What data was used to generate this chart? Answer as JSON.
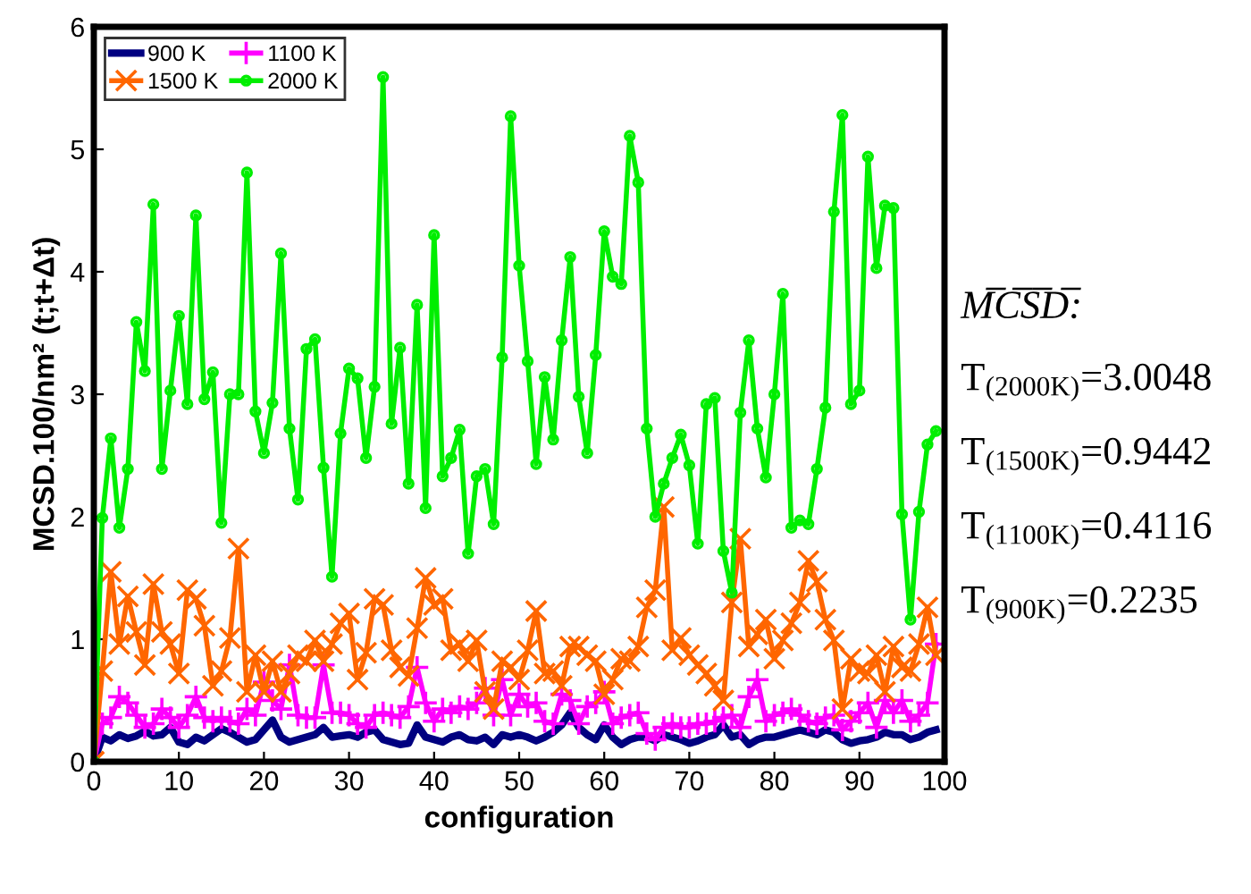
{
  "chart_data": {
    "type": "line",
    "xlabel": "configuration",
    "ylabel": "MCSD.100/nm² (t;t+Δt)",
    "x": [
      0,
      1,
      2,
      3,
      4,
      5,
      6,
      7,
      8,
      9,
      10,
      11,
      12,
      13,
      14,
      15,
      16,
      17,
      18,
      19,
      20,
      21,
      22,
      23,
      24,
      25,
      26,
      27,
      28,
      29,
      30,
      31,
      32,
      33,
      34,
      35,
      36,
      37,
      38,
      39,
      40,
      41,
      42,
      43,
      44,
      45,
      46,
      47,
      48,
      49,
      50,
      51,
      52,
      53,
      54,
      55,
      56,
      57,
      58,
      59,
      60,
      61,
      62,
      63,
      64,
      65,
      66,
      67,
      68,
      69,
      70,
      71,
      72,
      73,
      74,
      75,
      76,
      77,
      78,
      79,
      80,
      81,
      82,
      83,
      84,
      85,
      86,
      87,
      88,
      89,
      90,
      91,
      92,
      93,
      94,
      95,
      96,
      97,
      98,
      99
    ],
    "series": [
      {
        "name": "900 K",
        "color": "#000080",
        "marker": "none",
        "values": [
          0,
          0.2,
          0.17,
          0.22,
          0.19,
          0.21,
          0.25,
          0.21,
          0.22,
          0.28,
          0.16,
          0.14,
          0.2,
          0.17,
          0.22,
          0.27,
          0.24,
          0.2,
          0.16,
          0.18,
          0.26,
          0.34,
          0.2,
          0.16,
          0.18,
          0.2,
          0.22,
          0.28,
          0.2,
          0.21,
          0.22,
          0.2,
          0.24,
          0.26,
          0.18,
          0.16,
          0.14,
          0.15,
          0.3,
          0.2,
          0.18,
          0.16,
          0.2,
          0.22,
          0.18,
          0.17,
          0.2,
          0.14,
          0.22,
          0.2,
          0.22,
          0.2,
          0.17,
          0.2,
          0.24,
          0.3,
          0.4,
          0.28,
          0.22,
          0.18,
          0.3,
          0.2,
          0.14,
          0.18,
          0.2,
          0.2,
          0.17,
          0.22,
          0.2,
          0.18,
          0.15,
          0.17,
          0.2,
          0.22,
          0.3,
          0.2,
          0.22,
          0.14,
          0.18,
          0.2,
          0.2,
          0.22,
          0.24,
          0.26,
          0.24,
          0.22,
          0.26,
          0.24,
          0.18,
          0.15,
          0.17,
          0.18,
          0.2,
          0.24,
          0.22,
          0.22,
          0.18,
          0.2,
          0.24,
          0.26
        ]
      },
      {
        "name": "1100 K",
        "color": "#ff00ff",
        "marker": "cross",
        "values": [
          0,
          0.31,
          0.36,
          0.53,
          0.48,
          0.38,
          0.28,
          0.31,
          0.43,
          0.36,
          0.28,
          0.38,
          0.53,
          0.36,
          0.33,
          0.36,
          0.33,
          0.31,
          0.43,
          0.38,
          0.65,
          0.5,
          0.43,
          0.79,
          0.38,
          0.36,
          0.36,
          0.79,
          0.4,
          0.4,
          0.38,
          0.31,
          0.28,
          0.38,
          0.4,
          0.38,
          0.36,
          0.45,
          0.77,
          0.48,
          0.33,
          0.43,
          0.4,
          0.45,
          0.43,
          0.48,
          0.6,
          0.38,
          0.67,
          0.38,
          0.55,
          0.45,
          0.48,
          0.33,
          0.31,
          0.55,
          0.5,
          0.31,
          0.45,
          0.48,
          0.57,
          0.31,
          0.36,
          0.38,
          0.4,
          0.23,
          0.18,
          0.28,
          0.31,
          0.28,
          0.28,
          0.31,
          0.31,
          0.33,
          0.36,
          0.38,
          0.28,
          0.53,
          0.67,
          0.33,
          0.38,
          0.4,
          0.43,
          0.38,
          0.33,
          0.31,
          0.36,
          0.38,
          0.26,
          0.33,
          0.4,
          0.48,
          0.28,
          0.5,
          0.4,
          0.5,
          0.33,
          0.38,
          0.48,
          0.96
        ]
      },
      {
        "name": "1500 K",
        "color": "#ff6600",
        "marker": "x",
        "values": [
          0,
          0.74,
          1.55,
          0.96,
          1.35,
          1.06,
          0.79,
          1.45,
          1.06,
          0.96,
          0.72,
          1.4,
          1.33,
          1.11,
          0.62,
          0.74,
          1.01,
          1.74,
          0.57,
          0.87,
          0.57,
          0.82,
          0.57,
          0.72,
          0.87,
          0.82,
          0.99,
          0.82,
          0.96,
          1.13,
          1.21,
          0.67,
          0.89,
          1.33,
          1.28,
          0.91,
          0.77,
          0.7,
          1.09,
          1.5,
          1.28,
          1.33,
          0.91,
          0.96,
          0.82,
          0.99,
          0.57,
          0.43,
          0.82,
          0.77,
          0.67,
          0.91,
          1.23,
          0.72,
          0.74,
          0.62,
          0.94,
          0.94,
          0.87,
          0.82,
          0.55,
          0.67,
          0.84,
          0.82,
          0.94,
          1.26,
          1.4,
          2.08,
          0.91,
          1.01,
          0.87,
          0.79,
          0.72,
          0.62,
          0.5,
          1.3,
          1.82,
          0.94,
          1.04,
          1.16,
          0.84,
          0.99,
          1.13,
          1.3,
          1.64,
          1.47,
          1.16,
          0.99,
          0.43,
          0.84,
          0.74,
          0.72,
          0.87,
          0.57,
          0.94,
          0.77,
          0.74,
          0.96,
          1.26,
          0.87
        ]
      },
      {
        "name": "2000 K",
        "color": "#00ee00",
        "marker": "circle",
        "values": [
          0,
          1.99,
          2.64,
          1.91,
          2.39,
          3.59,
          3.19,
          4.55,
          2.39,
          3.03,
          3.64,
          2.92,
          4.46,
          2.96,
          3.18,
          1.95,
          3.0,
          3.0,
          4.81,
          2.86,
          2.52,
          2.93,
          4.15,
          2.72,
          2.14,
          3.37,
          3.45,
          2.4,
          1.51,
          2.68,
          3.21,
          3.13,
          2.48,
          3.06,
          5.59,
          2.76,
          3.38,
          2.27,
          3.73,
          2.07,
          4.3,
          2.33,
          2.48,
          2.71,
          1.7,
          2.33,
          2.39,
          1.94,
          3.3,
          5.27,
          4.05,
          3.27,
          2.43,
          3.14,
          2.63,
          3.44,
          4.12,
          2.98,
          2.52,
          3.32,
          4.33,
          3.96,
          3.9,
          5.11,
          4.73,
          2.72,
          2.0,
          2.27,
          2.48,
          2.67,
          2.42,
          1.78,
          2.92,
          2.97,
          1.72,
          1.38,
          2.85,
          3.44,
          2.72,
          2.32,
          3.0,
          3.82,
          1.91,
          1.97,
          1.94,
          2.39,
          2.89,
          4.49,
          5.28,
          2.92,
          3.03,
          4.94,
          4.03,
          4.54,
          4.52,
          2.02,
          1.16,
          2.04,
          2.59,
          2.7
        ]
      }
    ],
    "xlim": [
      0,
      100
    ],
    "xticks": [
      0,
      10,
      20,
      30,
      40,
      50,
      60,
      70,
      80,
      90,
      100
    ],
    "ylim": [
      0,
      6
    ],
    "yticks": [
      0,
      1,
      2,
      3,
      4,
      5,
      6
    ],
    "grid": false,
    "legend": "top left",
    "annotations": [
      "M̅C̅S̅D̅:",
      "T$_{(2000K)}$=3.0048",
      "T$_{(1500K)}$=0.9442",
      "T$_{(1100K)}$=0.4116",
      "T$_{(900K)}$=0.2235"
    ]
  }
}
